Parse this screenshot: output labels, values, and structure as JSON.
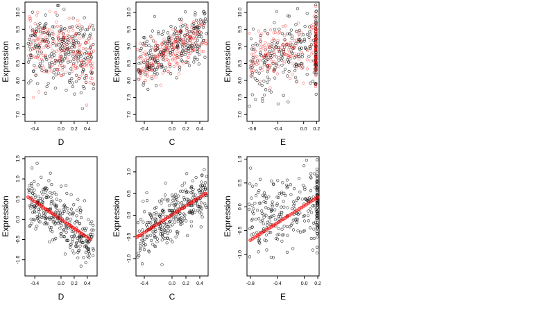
{
  "chart_data": [
    {
      "type": "scatter",
      "xlabel": "D",
      "ylabel": "Expression",
      "xlim": [
        -0.55,
        0.55
      ],
      "ylim": [
        6.8,
        10.3
      ],
      "xticks": [
        -0.4,
        0.0,
        0.2,
        0.4
      ],
      "xtick_labels": [
        "-0.4",
        "0.0",
        "0.2",
        "0.4"
      ],
      "yticks": [
        7.0,
        7.5,
        8.0,
        8.5,
        9.0,
        9.5,
        10.0
      ],
      "ytick_labels": [
        "7.0",
        "7.5",
        "8.0",
        "8.5",
        "9.0",
        "9.5",
        "10.0"
      ],
      "grid": false,
      "series": [
        {
          "color": "#000000",
          "role": "observed",
          "pattern": {
            "x_min": -0.5,
            "x_max": 0.5,
            "intercept": 8.9,
            "slope": -0.6,
            "spread": 0.55,
            "n": 250
          }
        },
        {
          "color": "#ff0000",
          "role": "fitted",
          "pattern": {
            "x_min": -0.5,
            "x_max": 0.5,
            "intercept": 8.9,
            "slope": -0.5,
            "spread": 0.45,
            "n": 200
          }
        }
      ]
    },
    {
      "type": "scatter",
      "xlabel": "C",
      "ylabel": "Expression",
      "xlim": [
        -0.52,
        0.52
      ],
      "ylim": [
        6.8,
        10.3
      ],
      "xticks": [
        -0.4,
        0.0,
        0.2,
        0.4
      ],
      "xtick_labels": [
        "-0.4",
        "0.0",
        "0.2",
        "0.4"
      ],
      "yticks": [
        7.0,
        7.5,
        8.0,
        8.5,
        9.0,
        9.5,
        10.0
      ],
      "ytick_labels": [
        "7.0",
        "7.5",
        "8.0",
        "8.5",
        "9.0",
        "9.5",
        "10.0"
      ],
      "grid": false,
      "series": [
        {
          "color": "#000000",
          "role": "observed",
          "pattern": {
            "x_min": -0.5,
            "x_max": 0.5,
            "intercept": 8.9,
            "slope": 1.0,
            "spread": 0.35,
            "n": 250
          }
        },
        {
          "color": "#ff0000",
          "role": "fitted",
          "pattern": {
            "x_min": -0.5,
            "x_max": 0.5,
            "intercept": 8.85,
            "slope": 1.0,
            "spread": 0.3,
            "n": 200
          }
        }
      ]
    },
    {
      "type": "scatter",
      "xlabel": "E",
      "ylabel": "Expression",
      "xlim": [
        -0.88,
        0.24
      ],
      "ylim": [
        6.8,
        10.3
      ],
      "xticks": [
        -0.8,
        -0.4,
        0.0,
        0.2
      ],
      "xtick_labels": [
        "-0.8",
        "-0.4",
        "0.0",
        "0.2"
      ],
      "yticks": [
        7.0,
        7.5,
        8.0,
        8.5,
        9.0,
        9.5,
        10.0
      ],
      "ytick_labels": [
        "7.0",
        "7.5",
        "8.0",
        "8.5",
        "9.0",
        "9.5",
        "10.0"
      ],
      "grid": false,
      "series": [
        {
          "color": "#000000",
          "role": "observed",
          "pattern": {
            "x_min": -0.85,
            "x_max": 0.2,
            "intercept": 8.8,
            "slope": 0.3,
            "spread": 0.5,
            "n": 200,
            "cluster_x": 0.19,
            "cluster_n": 60
          }
        },
        {
          "color": "#ff0000",
          "role": "fitted",
          "pattern": {
            "x_min": -0.85,
            "x_max": 0.2,
            "intercept": 8.9,
            "slope": 0.3,
            "spread": 0.4,
            "n": 150,
            "cluster_x": 0.19,
            "cluster_n": 60
          }
        }
      ]
    },
    {
      "type": "scatter",
      "xlabel": "D",
      "ylabel": "Expression",
      "xlim": [
        -0.55,
        0.55
      ],
      "ylim": [
        -1.4,
        1.55
      ],
      "xticks": [
        -0.4,
        0.0,
        0.2,
        0.4
      ],
      "xtick_labels": [
        "-0.4",
        "0.0",
        "0.2",
        "0.4"
      ],
      "yticks": [
        -1.0,
        -0.5,
        0.0,
        0.5,
        1.0,
        1.5
      ],
      "ytick_labels": [
        "-1.0",
        "-0.5",
        "0.0",
        "0.5",
        "1.0",
        "1.5"
      ],
      "grid": false,
      "series": [
        {
          "color": "#000000",
          "role": "residual",
          "pattern": {
            "x_min": -0.5,
            "x_max": 0.5,
            "intercept": 0.0,
            "slope": -1.1,
            "spread": 0.35,
            "n": 300
          }
        },
        {
          "color": "#ff0000",
          "role": "fit-line",
          "line": {
            "x": [
              -0.5,
              0.45
            ],
            "y": [
              0.55,
              -0.5
            ]
          }
        }
      ]
    },
    {
      "type": "scatter",
      "xlabel": "C",
      "ylabel": "Expression",
      "xlim": [
        -0.52,
        0.52
      ],
      "ylim": [
        -1.4,
        1.35
      ],
      "xticks": [
        -0.4,
        0.0,
        0.2,
        0.4
      ],
      "xtick_labels": [
        "-0.4",
        "0.0",
        "0.2",
        "0.4"
      ],
      "yticks": [
        -1.0,
        -0.5,
        0.0,
        0.5,
        1.0
      ],
      "ytick_labels": [
        "-1.0",
        "-0.5",
        "0.0",
        "0.5",
        "1.0"
      ],
      "grid": false,
      "series": [
        {
          "color": "#000000",
          "role": "residual",
          "pattern": {
            "x_min": -0.5,
            "x_max": 0.5,
            "intercept": 0.0,
            "slope": 1.0,
            "spread": 0.3,
            "n": 300
          }
        },
        {
          "color": "#ff0000",
          "role": "fit-line",
          "line": {
            "x": [
              -0.5,
              0.48
            ],
            "y": [
              -0.5,
              0.5
            ]
          }
        }
      ]
    },
    {
      "type": "scatter",
      "xlabel": "E",
      "ylabel": "Expression",
      "xlim": [
        -0.85,
        0.22
      ],
      "ylim": [
        -1.45,
        1.05
      ],
      "xticks": [
        -0.8,
        -0.4,
        0.0,
        0.2
      ],
      "xtick_labels": [
        "-0.8",
        "-0.4",
        "0.0",
        "0.2"
      ],
      "yticks": [
        -1.0,
        -0.5,
        0.0,
        0.5,
        1.0
      ],
      "ytick_labels": [
        "-1.0",
        "-0.5",
        "0.0",
        "0.5",
        "1.0"
      ],
      "grid": false,
      "series": [
        {
          "color": "#000000",
          "role": "residual",
          "pattern": {
            "x_min": -0.82,
            "x_max": 0.2,
            "intercept": 0.0,
            "slope": 0.3,
            "spread": 0.4,
            "n": 220,
            "cluster_x": 0.19,
            "cluster_n": 60
          }
        },
        {
          "color": "#ff0000",
          "role": "fit-line",
          "line": {
            "x": [
              -0.8,
              0.2
            ],
            "y": [
              -0.7,
              0.2
            ]
          }
        }
      ]
    }
  ]
}
